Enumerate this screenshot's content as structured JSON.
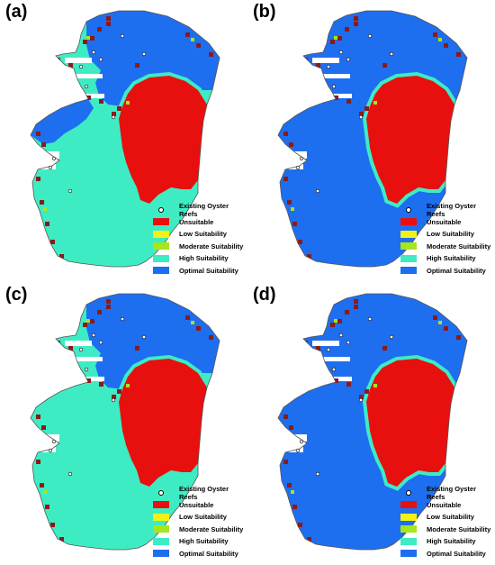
{
  "panels": [
    {
      "label": "(a)",
      "scenario": "a"
    },
    {
      "label": "(b)",
      "scenario": "b"
    },
    {
      "label": "(c)",
      "scenario": "c"
    },
    {
      "label": "(d)",
      "scenario": "d"
    }
  ],
  "legend": {
    "reefs": "Existing Oyster Reefs",
    "unsuitable": "Unsuitable",
    "low": "Low Suitability",
    "moderate": "Moderate Suitability",
    "high": "High Suitability",
    "optimal": "Optimal Suitability"
  },
  "colors": {
    "unsuitable": "#e8100e",
    "low": "#f2f213",
    "moderate": "#a6e61a",
    "high": "#3eecc4",
    "optimal": "#1e6ef0",
    "shoreline": "#8b1a1a",
    "reef": "#ffffff"
  }
}
